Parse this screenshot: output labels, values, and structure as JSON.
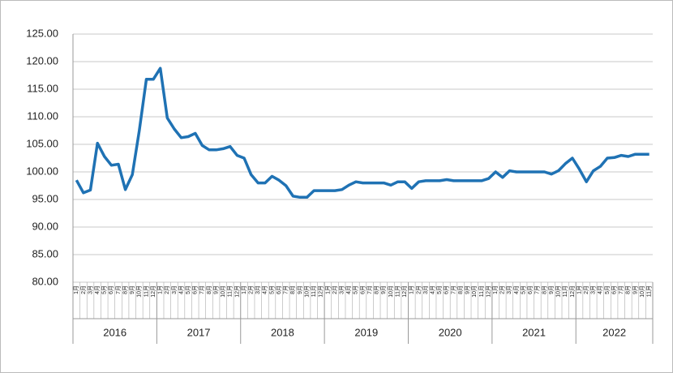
{
  "chart_data": {
    "type": "line",
    "categories": [
      "1月",
      "2月",
      "3月",
      "4月",
      "5月",
      "6月",
      "7月",
      "8月",
      "9月",
      "10月",
      "11月",
      "12月",
      "1月",
      "2月",
      "3月",
      "4月",
      "5月",
      "6月",
      "7月",
      "8月",
      "9月",
      "10月",
      "11月",
      "12月",
      "1月",
      "2月",
      "3月",
      "4月",
      "5月",
      "6月",
      "7月",
      "8月",
      "9月",
      "10月",
      "11月",
      "12月",
      "1月",
      "2月",
      "3月",
      "4月",
      "5月",
      "6月",
      "7月",
      "8月",
      "9月",
      "10月",
      "11月",
      "12月",
      "1月",
      "2月",
      "3月",
      "4月",
      "5月",
      "6月",
      "7月",
      "8月",
      "9月",
      "10月",
      "11月",
      "12月",
      "1月",
      "2月",
      "3月",
      "4月",
      "5月",
      "6月",
      "7月",
      "8月",
      "9月",
      "10月",
      "11月",
      "12月",
      "1月",
      "2月",
      "3月",
      "4月",
      "5月",
      "6月",
      "7月",
      "8月",
      "9月",
      "10月",
      "11月"
    ],
    "years": [
      "2016",
      "2017",
      "2018",
      "2019",
      "2020",
      "2021",
      "2022"
    ],
    "series": [
      {
        "color": "#1f72b4",
        "values": [
          98.5,
          96.2,
          96.7,
          105.2,
          102.8,
          101.2,
          101.4,
          96.8,
          99.5,
          107.5,
          116.8,
          116.8,
          118.8,
          109.8,
          107.8,
          106.2,
          106.4,
          107.0,
          104.8,
          104.0,
          104.0,
          104.2,
          104.6,
          103.0,
          102.5,
          99.5,
          98.0,
          98.0,
          99.2,
          98.5,
          97.5,
          95.6,
          95.4,
          95.4,
          96.6,
          96.6,
          96.6,
          96.6,
          96.8,
          97.6,
          98.2,
          98.0,
          98.0,
          98.0,
          98.0,
          97.6,
          98.2,
          98.2,
          97.0,
          98.2,
          98.4,
          98.4,
          98.4,
          98.6,
          98.4,
          98.4,
          98.4,
          98.4,
          98.4,
          98.8,
          100.0,
          99.0,
          100.2,
          100.0,
          100.0,
          100.0,
          100.0,
          100.0,
          99.6,
          100.2,
          101.5,
          102.5,
          100.5,
          98.2,
          100.2,
          101.0,
          102.5,
          102.6,
          103.0,
          102.8,
          103.2,
          103.2,
          103.2
        ]
      }
    ],
    "ylim": [
      80,
      125
    ],
    "yticks": [
      {
        "value": 80,
        "label": "80.00"
      },
      {
        "value": 85,
        "label": "85.00"
      },
      {
        "value": 90,
        "label": "90.00"
      },
      {
        "value": 95,
        "label": "95.00"
      },
      {
        "value": 100,
        "label": "100.00"
      },
      {
        "value": 105,
        "label": "105.00"
      },
      {
        "value": 110,
        "label": "110.00"
      },
      {
        "value": 115,
        "label": "115.00"
      },
      {
        "value": 120,
        "label": "120.00"
      },
      {
        "value": 125,
        "label": "125.00"
      }
    ],
    "grid": true
  }
}
